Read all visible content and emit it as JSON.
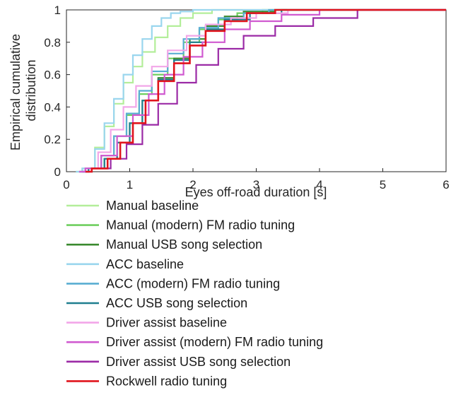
{
  "chart_data": {
    "type": "line",
    "subtype": "empirical-cdf-step",
    "xlabel": "Eyes off-road duration [s]",
    "ylabel_lines": [
      "Empirical cumulative",
      "distribution"
    ],
    "xlim": [
      0,
      6
    ],
    "ylim": [
      0,
      1
    ],
    "xticks": [
      0,
      1,
      2,
      3,
      4,
      5,
      6
    ],
    "yticks": [
      0,
      0.2,
      0.4,
      0.6,
      0.8,
      1
    ],
    "ytick_labels": [
      "0",
      "0.2",
      "0.4",
      "0.6",
      "0.8",
      "1"
    ],
    "grid": false,
    "legend_position": "below plot",
    "series": [
      {
        "name": "Manual baseline",
        "color": "#b3ee9a",
        "x": [
          0.25,
          0.45,
          0.6,
          0.75,
          0.9,
          1.05,
          1.2,
          1.4,
          1.6,
          1.8,
          2.0,
          2.3
        ],
        "y": [
          0.02,
          0.15,
          0.28,
          0.42,
          0.55,
          0.65,
          0.74,
          0.83,
          0.9,
          0.95,
          0.98,
          1.0
        ]
      },
      {
        "name": "Manual (modern) FM radio tuning",
        "color": "#6fcf5f",
        "x": [
          0.3,
          0.55,
          0.75,
          0.95,
          1.15,
          1.35,
          1.6,
          1.85,
          2.1,
          2.4,
          2.7,
          3.1
        ],
        "y": [
          0.02,
          0.1,
          0.22,
          0.35,
          0.48,
          0.6,
          0.7,
          0.8,
          0.88,
          0.94,
          0.98,
          1.0
        ]
      },
      {
        "name": "Manual USB song selection",
        "color": "#3a8a2f",
        "x": [
          0.35,
          0.6,
          0.8,
          1.0,
          1.2,
          1.45,
          1.7,
          1.95,
          2.2,
          2.5,
          2.8,
          3.3
        ],
        "y": [
          0.02,
          0.08,
          0.18,
          0.3,
          0.44,
          0.58,
          0.7,
          0.82,
          0.9,
          0.96,
          0.99,
          1.0
        ]
      },
      {
        "name": "ACC baseline",
        "color": "#9ad6ee",
        "x": [
          0.25,
          0.45,
          0.6,
          0.75,
          0.9,
          1.05,
          1.2,
          1.35,
          1.5,
          1.65,
          1.8,
          2.0
        ],
        "y": [
          0.02,
          0.14,
          0.3,
          0.45,
          0.6,
          0.72,
          0.82,
          0.9,
          0.95,
          0.98,
          0.99,
          1.0
        ]
      },
      {
        "name": "ACC (modern) FM radio tuning",
        "color": "#5aaed2",
        "x": [
          0.3,
          0.55,
          0.75,
          0.95,
          1.15,
          1.35,
          1.6,
          1.85,
          2.1,
          2.4,
          2.8,
          3.2
        ],
        "y": [
          0.02,
          0.1,
          0.22,
          0.36,
          0.5,
          0.62,
          0.73,
          0.82,
          0.89,
          0.95,
          0.98,
          1.0
        ]
      },
      {
        "name": "ACC USB song selection",
        "color": "#1f7f8f",
        "x": [
          0.35,
          0.6,
          0.8,
          1.0,
          1.2,
          1.45,
          1.7,
          1.95,
          2.2,
          2.5,
          2.9,
          3.4
        ],
        "y": [
          0.02,
          0.08,
          0.18,
          0.3,
          0.44,
          0.57,
          0.69,
          0.8,
          0.88,
          0.94,
          0.98,
          1.0
        ]
      },
      {
        "name": "Driver assist baseline",
        "color": "#f2a6e8",
        "x": [
          0.3,
          0.5,
          0.7,
          0.9,
          1.1,
          1.35,
          1.6,
          1.9,
          2.2,
          2.6,
          3.0,
          3.5
        ],
        "y": [
          0.02,
          0.12,
          0.26,
          0.4,
          0.53,
          0.65,
          0.75,
          0.84,
          0.91,
          0.95,
          0.98,
          1.0
        ]
      },
      {
        "name": "Driver assist  (modern) FM radio tuning",
        "color": "#d05ad0",
        "x": [
          0.3,
          0.55,
          0.8,
          1.05,
          1.3,
          1.55,
          1.85,
          2.15,
          2.5,
          2.9,
          3.4,
          4.0
        ],
        "y": [
          0.02,
          0.1,
          0.22,
          0.35,
          0.48,
          0.6,
          0.71,
          0.8,
          0.88,
          0.93,
          0.97,
          1.0
        ]
      },
      {
        "name": "Driver assist USB song selection",
        "color": "#9b2aa6",
        "x": [
          0.4,
          0.7,
          0.95,
          1.2,
          1.45,
          1.75,
          2.05,
          2.4,
          2.8,
          3.3,
          3.9,
          4.6
        ],
        "y": [
          0.02,
          0.08,
          0.17,
          0.29,
          0.42,
          0.55,
          0.66,
          0.76,
          0.84,
          0.9,
          0.95,
          1.0
        ]
      },
      {
        "name": "Rockwell radio tuning",
        "color": "#e0141c",
        "x": [
          0.4,
          0.65,
          0.85,
          1.05,
          1.25,
          1.45,
          1.7,
          1.95,
          2.2,
          2.5,
          2.85,
          3.3
        ],
        "y": [
          0.02,
          0.08,
          0.18,
          0.3,
          0.44,
          0.56,
          0.67,
          0.78,
          0.87,
          0.93,
          0.98,
          1.0
        ]
      }
    ]
  }
}
